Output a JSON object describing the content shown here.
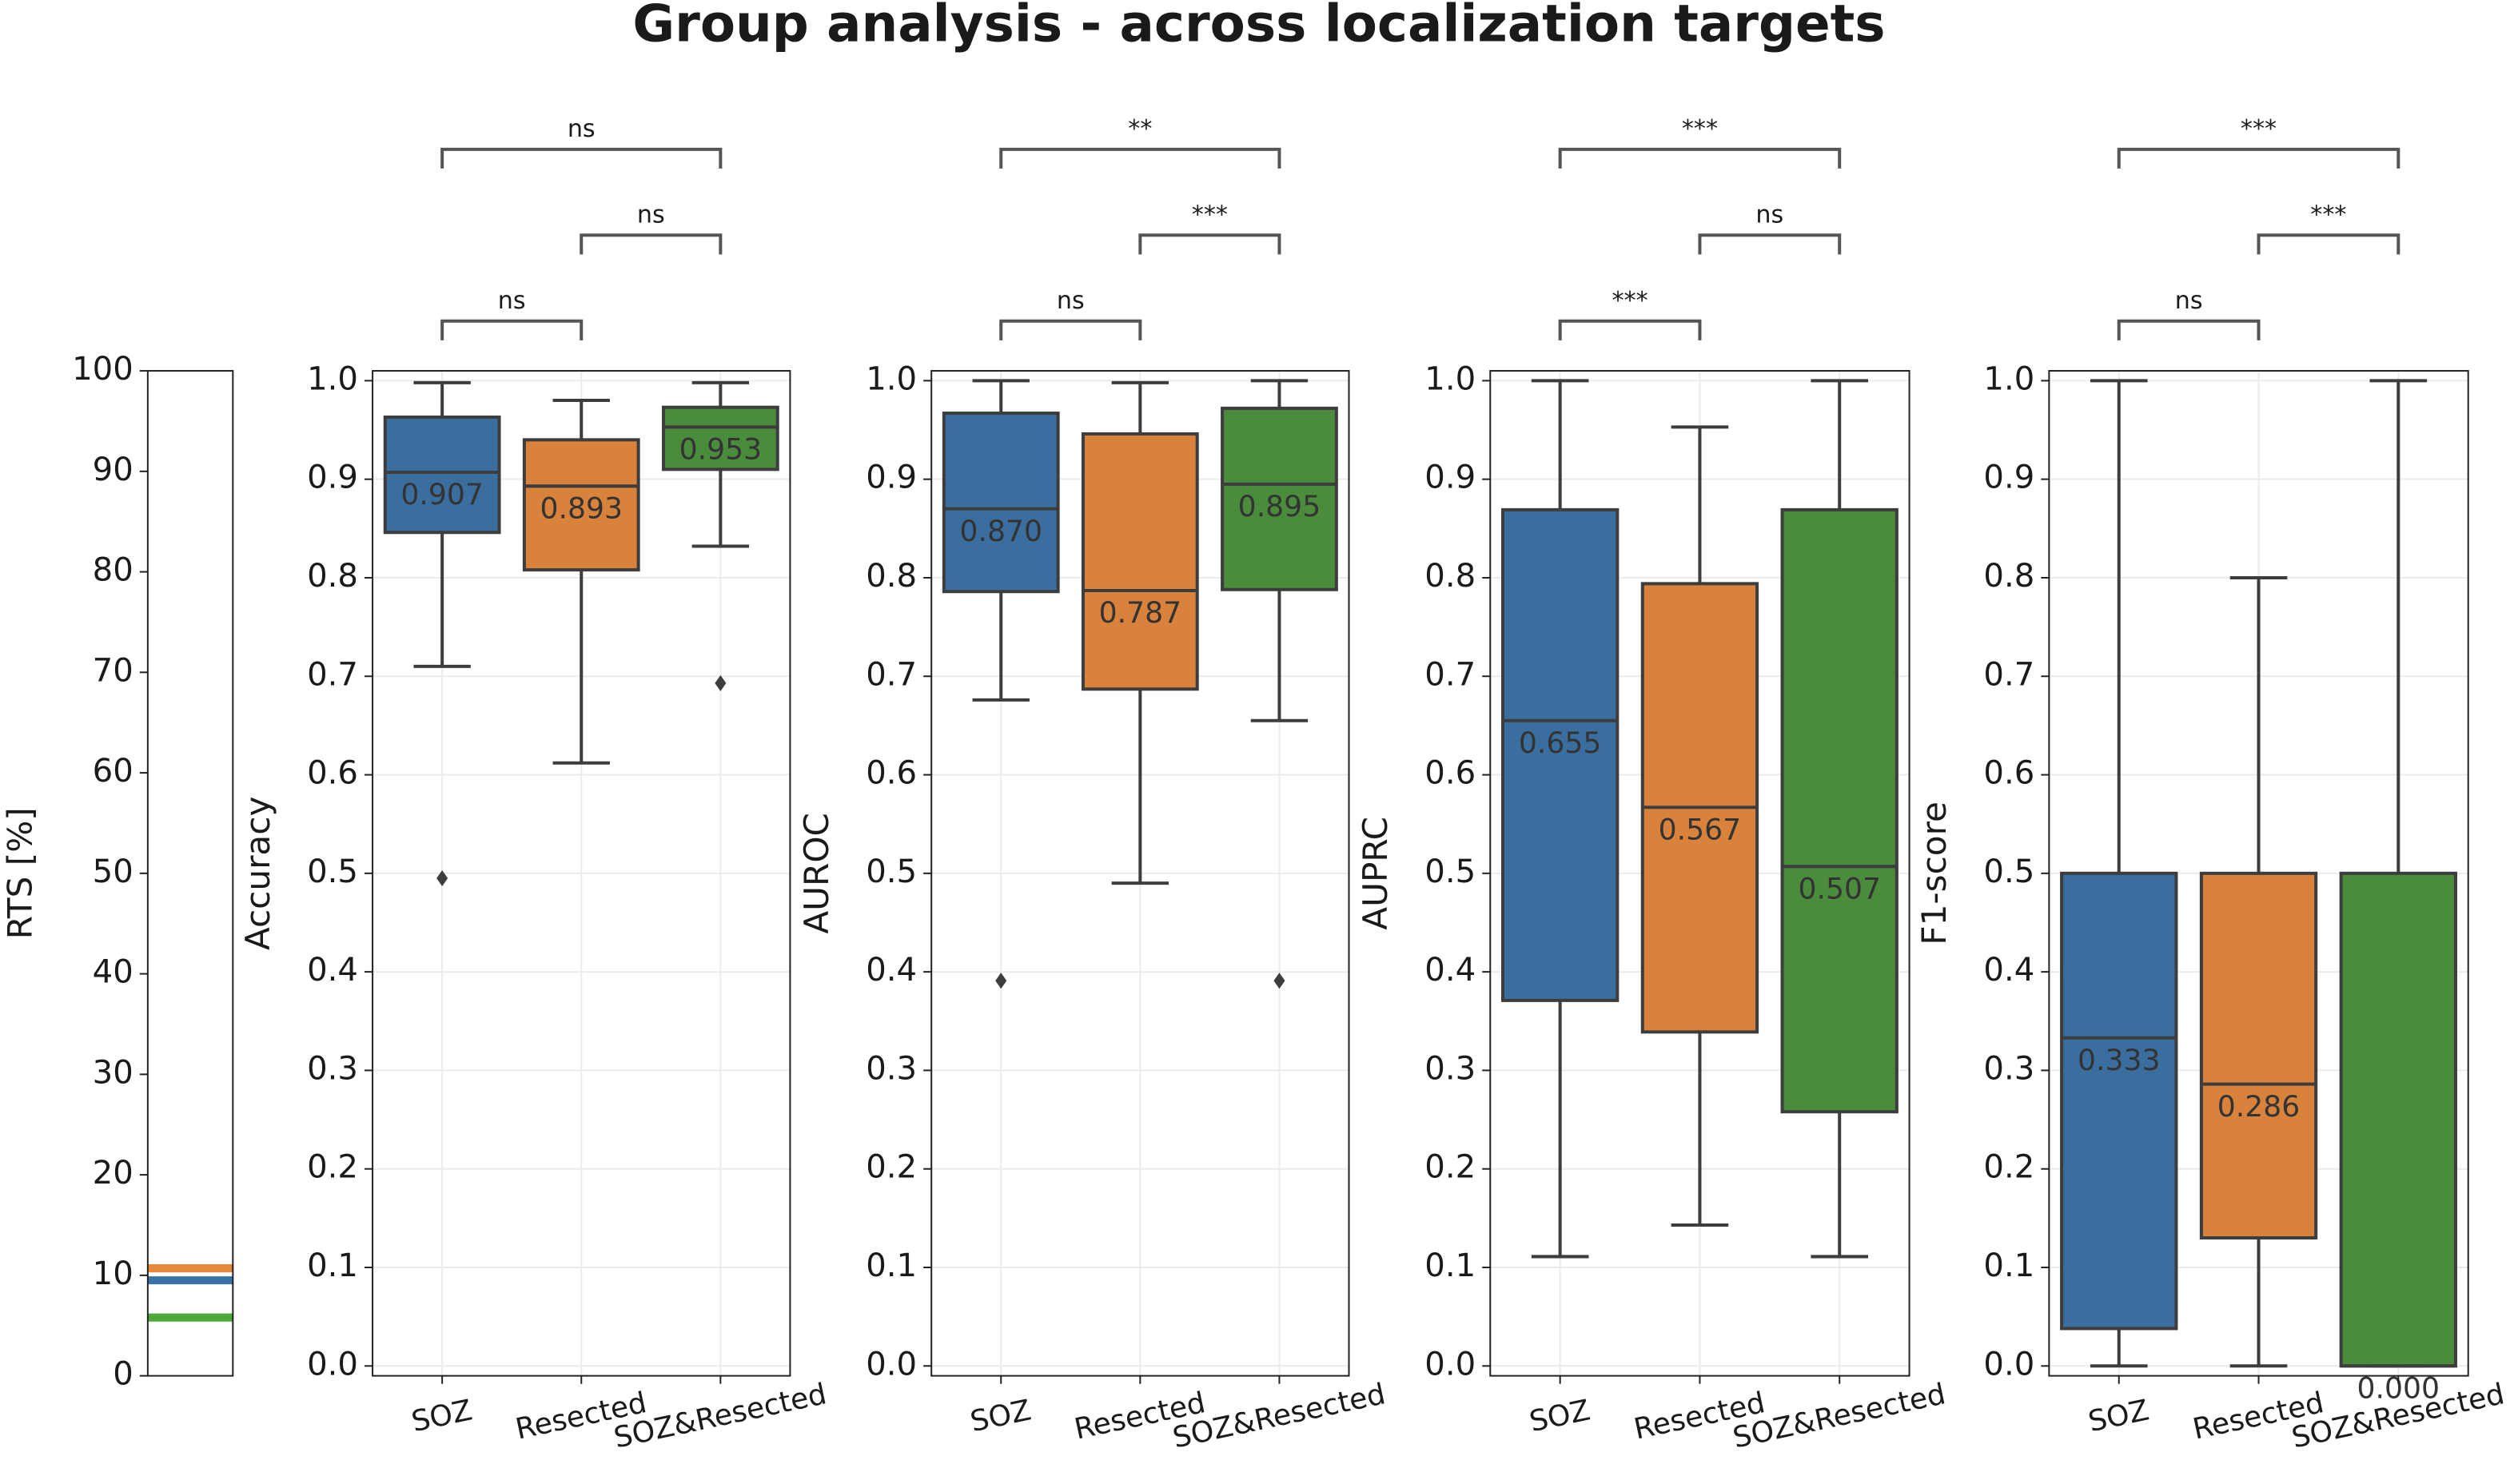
{
  "title": "Group analysis - across localization targets",
  "chart_data": [
    {
      "type": "hline",
      "ylabel": "RTS [%]",
      "ylim": [
        0,
        100
      ],
      "yticks": [
        0,
        10,
        20,
        30,
        40,
        50,
        60,
        70,
        80,
        90,
        100
      ],
      "grid": false,
      "values": [
        10.7,
        9.5,
        5.8
      ],
      "colors": [
        "#e8883a",
        "#3a73a8",
        "#4ea83a"
      ]
    },
    {
      "type": "box",
      "ylabel": "Accuracy",
      "ylim": [
        -0.01,
        1.01
      ],
      "grid": true,
      "yticks": [
        {
          "value": 0,
          "label": "0.0"
        },
        0.1,
        0.2,
        0.3,
        0.4,
        0.5,
        0.6,
        0.7,
        0.8,
        0.9,
        {
          "value": 1,
          "label": "1.0"
        }
      ],
      "categories": [
        "SOZ",
        "Resected",
        "SOZ&Resected"
      ],
      "boxes": [
        {
          "color": "#3a6e9f",
          "whislo": 0.71,
          "q1": 0.846,
          "med": 0.907,
          "q3": 0.963,
          "whishi": 0.998,
          "fliers": [
            0.495
          ],
          "value_label": "0.907"
        },
        {
          "color": "#d9823b",
          "whislo": 0.612,
          "q1": 0.808,
          "med": 0.893,
          "q3": 0.94,
          "whishi": 0.98,
          "fliers": [],
          "value_label": "0.893"
        },
        {
          "color": "#4a8b3c",
          "whislo": 0.832,
          "q1": 0.91,
          "med": 0.953,
          "q3": 0.973,
          "whishi": 0.998,
          "fliers": [
            0.693
          ],
          "value_label": "0.953"
        }
      ],
      "annotations": [
        {
          "from": "SOZ",
          "to": "Resected",
          "text": "ns"
        },
        {
          "from": "Resected",
          "to": "SOZ&Resected",
          "text": "ns"
        },
        {
          "from": "SOZ",
          "to": "SOZ&Resected",
          "text": "ns"
        }
      ]
    },
    {
      "type": "box",
      "ylabel": "AUROC",
      "ylim": [
        -0.01,
        1.01
      ],
      "grid": true,
      "yticks": [
        {
          "value": 0,
          "label": "0.0"
        },
        0.1,
        0.2,
        0.3,
        0.4,
        0.5,
        0.6,
        0.7,
        0.8,
        0.9,
        {
          "value": 1,
          "label": "1.0"
        }
      ],
      "categories": [
        "SOZ",
        "Resected",
        "SOZ&Resected"
      ],
      "boxes": [
        {
          "color": "#3a6e9f",
          "whislo": 0.676,
          "q1": 0.786,
          "med": 0.87,
          "q3": 0.967,
          "whishi": 1.0,
          "fliers": [
            0.391
          ],
          "value_label": "0.870"
        },
        {
          "color": "#d9823b",
          "whislo": 0.49,
          "q1": 0.687,
          "med": 0.787,
          "q3": 0.946,
          "whishi": 0.998,
          "fliers": [],
          "value_label": "0.787"
        },
        {
          "color": "#4a8b3c",
          "whislo": 0.655,
          "q1": 0.788,
          "med": 0.895,
          "q3": 0.972,
          "whishi": 1.0,
          "fliers": [
            0.391
          ],
          "value_label": "0.895"
        }
      ],
      "annotations": [
        {
          "from": "SOZ",
          "to": "Resected",
          "text": "ns"
        },
        {
          "from": "Resected",
          "to": "SOZ&Resected",
          "text": "***"
        },
        {
          "from": "SOZ",
          "to": "SOZ&Resected",
          "text": "**"
        }
      ]
    },
    {
      "type": "box",
      "ylabel": "AUPRC",
      "ylim": [
        -0.01,
        1.01
      ],
      "grid": true,
      "yticks": [
        {
          "value": 0,
          "label": "0.0"
        },
        0.1,
        0.2,
        0.3,
        0.4,
        0.5,
        0.6,
        0.7,
        0.8,
        0.9,
        {
          "value": 1,
          "label": "1.0"
        }
      ],
      "categories": [
        "SOZ",
        "Resected",
        "SOZ&Resected"
      ],
      "boxes": [
        {
          "color": "#3a6e9f",
          "whislo": 0.111,
          "q1": 0.371,
          "med": 0.655,
          "q3": 0.869,
          "whishi": 1.0,
          "fliers": [],
          "value_label": "0.655"
        },
        {
          "color": "#d9823b",
          "whislo": 0.143,
          "q1": 0.339,
          "med": 0.567,
          "q3": 0.794,
          "whishi": 0.953,
          "fliers": [],
          "value_label": "0.567"
        },
        {
          "color": "#4a8b3c",
          "whislo": 0.111,
          "q1": 0.258,
          "med": 0.507,
          "q3": 0.869,
          "whishi": 1.0,
          "fliers": [],
          "value_label": "0.507"
        }
      ],
      "annotations": [
        {
          "from": "SOZ",
          "to": "Resected",
          "text": "***"
        },
        {
          "from": "Resected",
          "to": "SOZ&Resected",
          "text": "ns"
        },
        {
          "from": "SOZ",
          "to": "SOZ&Resected",
          "text": "***"
        }
      ]
    },
    {
      "type": "box",
      "ylabel": "F1-score",
      "ylim": [
        -0.01,
        1.01
      ],
      "grid": true,
      "yticks": [
        {
          "value": 0,
          "label": "0.0"
        },
        0.1,
        0.2,
        0.3,
        0.4,
        0.5,
        0.6,
        0.7,
        0.8,
        0.9,
        {
          "value": 1,
          "label": "1.0"
        }
      ],
      "categories": [
        "SOZ",
        "Resected",
        "SOZ&Resected"
      ],
      "boxes": [
        {
          "color": "#3a6e9f",
          "whislo": 0.0,
          "q1": 0.038,
          "med": 0.333,
          "q3": 0.5,
          "whishi": 1.0,
          "fliers": [],
          "value_label": "0.333"
        },
        {
          "color": "#d9823b",
          "whislo": 0.0,
          "q1": 0.13,
          "med": 0.286,
          "q3": 0.5,
          "whishi": 0.8,
          "fliers": [],
          "value_label": "0.286"
        },
        {
          "color": "#4a8b3c",
          "whislo": 0.0,
          "q1": 0.0,
          "med": 0.0,
          "q3": 0.5,
          "whishi": 1.0,
          "fliers": [],
          "value_label": "0.000"
        }
      ],
      "annotations": [
        {
          "from": "SOZ",
          "to": "Resected",
          "text": "ns"
        },
        {
          "from": "Resected",
          "to": "SOZ&Resected",
          "text": "***"
        },
        {
          "from": "SOZ",
          "to": "SOZ&Resected",
          "text": "***"
        }
      ]
    }
  ]
}
